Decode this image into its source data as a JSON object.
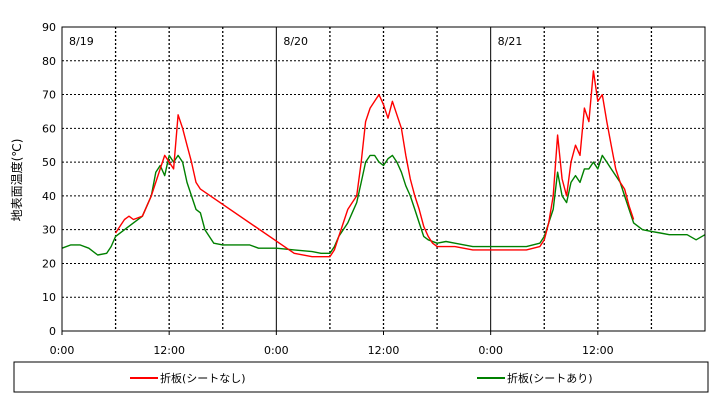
{
  "chart_data": {
    "type": "line",
    "title": "",
    "xlabel": "",
    "ylabel": "地表面温度(℃)",
    "ylim": [
      0,
      90
    ],
    "y_ticks": [
      "0",
      "10",
      "20",
      "30",
      "40",
      "50",
      "60",
      "70",
      "80",
      "90"
    ],
    "xlim_hours": [
      0,
      72
    ],
    "x_ticks": [
      {
        "hour": 0,
        "label": "0:00"
      },
      {
        "hour": 12,
        "label": "12:00"
      },
      {
        "hour": 24,
        "label": "0:00"
      },
      {
        "hour": 36,
        "label": "12:00"
      },
      {
        "hour": 48,
        "label": "0:00"
      },
      {
        "hour": 60,
        "label": "12:00"
      }
    ],
    "day_labels": [
      {
        "hour": 0,
        "label": "8/19"
      },
      {
        "hour": 24,
        "label": "8/20"
      },
      {
        "hour": 48,
        "label": "8/21"
      }
    ],
    "grid": true,
    "legend_position": "bottom",
    "series": [
      {
        "name": "折板(シートなし)",
        "color": "#ff0000",
        "x": [
          6.0,
          6.5,
          7.0,
          7.5,
          8.0,
          9.0,
          10.0,
          11.0,
          11.5,
          12.0,
          12.5,
          13.0,
          13.5,
          14.0,
          14.5,
          15.0,
          15.5,
          26.0,
          28.0,
          30.0,
          30.5,
          31.0,
          32.0,
          32.5,
          33.0,
          33.5,
          34.0,
          34.5,
          35.0,
          35.5,
          36.0,
          36.5,
          37.0,
          37.5,
          38.0,
          38.5,
          39.0,
          39.5,
          40.0,
          40.5,
          41.0,
          41.5,
          42.0,
          43.0,
          44.0,
          46.0,
          48.0,
          50.0,
          52.0,
          53.5,
          54.0,
          54.5,
          55.0,
          55.5,
          56.0,
          56.5,
          57.0,
          57.5,
          58.0,
          58.5,
          59.0,
          59.5,
          60.0,
          60.5,
          61.0,
          61.5,
          62.0,
          62.5,
          63.0,
          63.5,
          64.0
        ],
        "y": [
          29,
          31,
          33,
          34,
          33,
          34,
          40,
          48,
          52,
          50,
          48,
          64,
          60,
          55,
          50,
          44,
          42,
          23,
          22,
          22,
          24,
          28,
          36,
          38,
          40,
          50,
          62,
          66,
          68,
          70,
          67,
          63,
          68,
          64,
          60,
          52,
          45,
          40,
          36,
          31,
          28,
          26,
          25,
          25,
          25,
          24,
          24,
          24,
          24,
          25,
          27,
          32,
          40,
          58,
          45,
          40,
          50,
          55,
          52,
          66,
          62,
          77,
          68,
          70,
          62,
          55,
          48,
          44,
          42,
          37,
          33
        ]
      },
      {
        "name": "折板(シートあり)",
        "color": "#008000",
        "x": [
          0,
          1,
          2,
          3,
          4,
          5,
          5.5,
          6,
          7,
          8,
          9,
          10,
          10.5,
          11,
          11.5,
          12,
          12.5,
          13,
          13.5,
          14,
          14.5,
          15,
          15.5,
          16,
          17,
          18,
          19,
          20,
          21,
          22,
          23,
          24,
          26,
          28,
          29,
          30,
          30.5,
          31,
          32,
          32.5,
          33,
          33.5,
          34,
          34.5,
          35,
          35.5,
          36,
          36.5,
          37,
          37.5,
          38,
          38.5,
          39,
          39.5,
          40,
          40.5,
          41,
          42,
          43,
          44,
          46,
          48,
          50,
          52,
          53.5,
          54,
          54.5,
          55,
          55.5,
          56,
          56.5,
          57,
          57.5,
          58,
          58.5,
          59,
          59.5,
          60,
          60.5,
          61,
          61.5,
          62,
          62.5,
          63,
          63.5,
          64,
          65,
          66,
          67,
          68,
          69,
          70,
          71,
          72
        ],
        "y": [
          24.5,
          25.5,
          25.5,
          24.5,
          22.5,
          23,
          25,
          28,
          30,
          32,
          34,
          40,
          47,
          49,
          46,
          52,
          50,
          52,
          50,
          44,
          40,
          36,
          35,
          30,
          26,
          25.5,
          25.5,
          25.5,
          25.5,
          24.5,
          24.5,
          24.5,
          24,
          23.5,
          23,
          23,
          25,
          28,
          32,
          35,
          38,
          44,
          50,
          52,
          52,
          50,
          49,
          51,
          52,
          50,
          47,
          43,
          40,
          36,
          32,
          28,
          27,
          26,
          26.5,
          26,
          25,
          25,
          25,
          25,
          26,
          28,
          32,
          36,
          47,
          40,
          38,
          44,
          46,
          44,
          48,
          48,
          50,
          48,
          52,
          50,
          48,
          46,
          44,
          40,
          36,
          32,
          30,
          29.5,
          29,
          28.5,
          28.5,
          28.5,
          27,
          28.5
        ]
      }
    ]
  }
}
